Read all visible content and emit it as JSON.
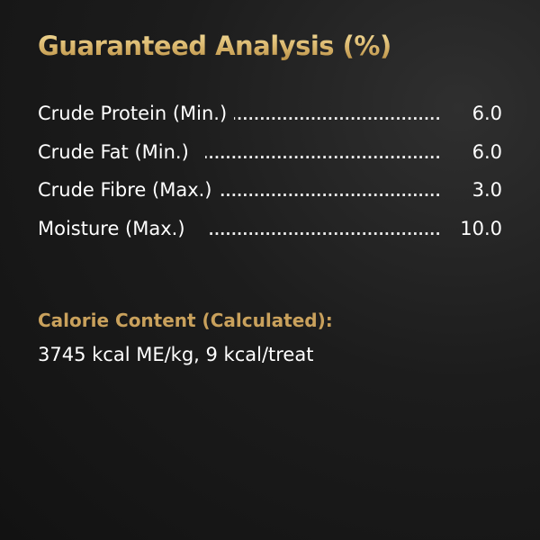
{
  "title": "Guaranteed Analysis (%)",
  "rows": [
    {
      "label": "Crude Protein (Min.)",
      "value": "6.0"
    },
    {
      "label": "Crude Fat (Min.)",
      "value": "6.0"
    },
    {
      "label": "Crude Fibre (Max.)",
      "value": "3.0"
    },
    {
      "label": "Moisture (Max.)",
      "value": "10.0"
    }
  ],
  "calorie": {
    "heading": "Calorie Content (Calculated):",
    "text": "3745 kcal ME/kg, 9 kcal/treat"
  },
  "colors": {
    "gold": "#c9a15c",
    "background": "#1c1c1c",
    "text": "#ffffff"
  }
}
